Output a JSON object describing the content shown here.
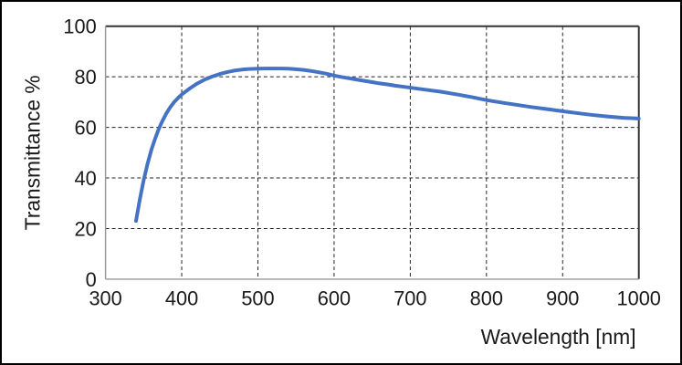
{
  "chart_data": {
    "type": "line",
    "title": "",
    "xlabel": "Wavelength [nm]",
    "ylabel": "Transmittance %",
    "xlim": [
      300,
      1000
    ],
    "ylim": [
      0,
      100
    ],
    "xticks": [
      300,
      400,
      500,
      600,
      700,
      800,
      900,
      1000
    ],
    "yticks": [
      0,
      20,
      40,
      60,
      80,
      100
    ],
    "grid": "dashed-both-axes",
    "legend": "none",
    "colors": {
      "line": "#4472C4",
      "gridline": "#222222",
      "axis_line": "#999999",
      "plot_frame": "#333333",
      "text": "#1a1a1a",
      "background": "#ffffff",
      "outer_border": "#000000"
    },
    "series": [
      {
        "name": "Transmittance",
        "color": "#4472C4",
        "line_width": 4,
        "x": [
          340,
          345,
          350,
          355,
          360,
          365,
          370,
          375,
          380,
          385,
          390,
          395,
          400,
          410,
          420,
          430,
          440,
          450,
          460,
          470,
          480,
          490,
          500,
          510,
          520,
          530,
          540,
          550,
          560,
          570,
          580,
          590,
          600,
          610,
          620,
          630,
          640,
          650,
          660,
          670,
          680,
          690,
          700,
          720,
          740,
          760,
          780,
          800,
          820,
          840,
          860,
          880,
          900,
          920,
          940,
          960,
          980,
          1000
        ],
        "y": [
          23,
          31.5,
          39,
          45.5,
          51,
          55.5,
          59.5,
          62.8,
          65.6,
          68,
          70,
          71.6,
          73,
          75.3,
          77.3,
          78.9,
          80.1,
          81.1,
          81.9,
          82.5,
          82.9,
          83.1,
          83.2,
          83.3,
          83.3,
          83.3,
          83.2,
          83,
          82.7,
          82.3,
          81.8,
          81.2,
          80.5,
          79.9,
          79.4,
          78.9,
          78.4,
          77.9,
          77.4,
          77,
          76.5,
          76.1,
          75.7,
          74.9,
          74.1,
          73.1,
          72,
          70.8,
          69.8,
          68.9,
          68,
          67.2,
          66.4,
          65.6,
          64.9,
          64.3,
          63.8,
          63.5
        ]
      }
    ]
  }
}
